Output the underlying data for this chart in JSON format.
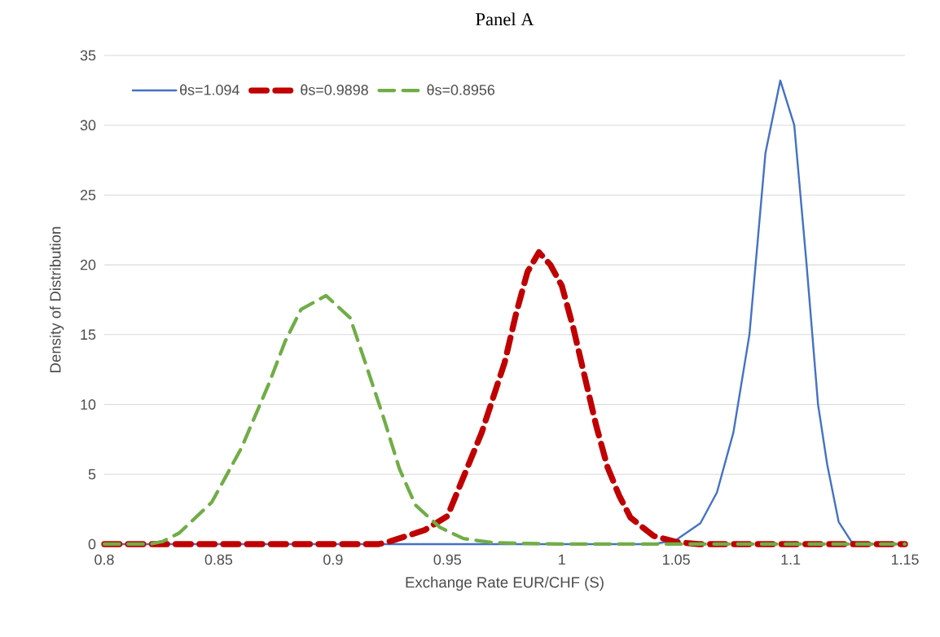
{
  "chart_data": {
    "type": "line",
    "title": "Panel A",
    "xlabel": "Exchange Rate EUR/CHF (S)",
    "ylabel": "Density of Distribution",
    "xlim": [
      0.8,
      1.15
    ],
    "xticks": [
      0.8,
      0.85,
      0.9,
      0.95,
      1,
      1.05,
      1.1,
      1.15
    ],
    "ylim": [
      0,
      35
    ],
    "yticks": [
      0,
      5,
      10,
      15,
      20,
      25,
      30,
      35
    ],
    "grid": "y",
    "legend": "top left",
    "series": [
      {
        "name": "θs=1.094",
        "color": "#4472c4",
        "line_style": "solid",
        "x": [
          0.8,
          0.9,
          1.0,
          1.04,
          1.05,
          1.0606,
          1.0678,
          1.075,
          1.082,
          1.089,
          1.0955,
          1.1016,
          1.107,
          1.112,
          1.116,
          1.121,
          1.1265,
          1.13,
          1.15
        ],
        "values": [
          0,
          0,
          0,
          0,
          0.3,
          1.5,
          3.7,
          8,
          15,
          28,
          33.2,
          30,
          20,
          10,
          5.7,
          1.6,
          0.2,
          0,
          0
        ]
      },
      {
        "name": "θs=0.9898",
        "color": "#c00000",
        "line_style": "dashed",
        "x": [
          0.8,
          0.9,
          0.92,
          0.925,
          0.94,
          0.95,
          0.955,
          0.965,
          0.975,
          0.98,
          0.985,
          0.99,
          0.995,
          1.0,
          1.005,
          1.01,
          1.015,
          1.02,
          1.025,
          1.03,
          1.04,
          1.05,
          1.06,
          1.15
        ],
        "values": [
          0,
          0,
          0,
          0.2,
          1,
          2,
          4,
          8,
          13,
          16.5,
          19.5,
          20.9,
          20,
          18.5,
          15.5,
          12,
          8.5,
          5.5,
          3.5,
          1.9,
          0.6,
          0.15,
          0,
          0
        ]
      },
      {
        "name": "θs=0.8956",
        "color": "#70ad47",
        "line_style": "dashed",
        "x": [
          0.8,
          0.82,
          0.8256,
          0.8328,
          0.847,
          0.86,
          0.872,
          0.879,
          0.886,
          0.8969,
          0.9075,
          0.9147,
          0.9218,
          0.929,
          0.936,
          0.9467,
          0.957,
          0.97,
          1.0,
          1.15
        ],
        "values": [
          0,
          0,
          0.2,
          0.8,
          3,
          6.9,
          11.5,
          14.5,
          16.8,
          17.8,
          16.2,
          12.7,
          9.2,
          5.4,
          2.8,
          1.2,
          0.4,
          0.1,
          0,
          0
        ]
      }
    ]
  }
}
